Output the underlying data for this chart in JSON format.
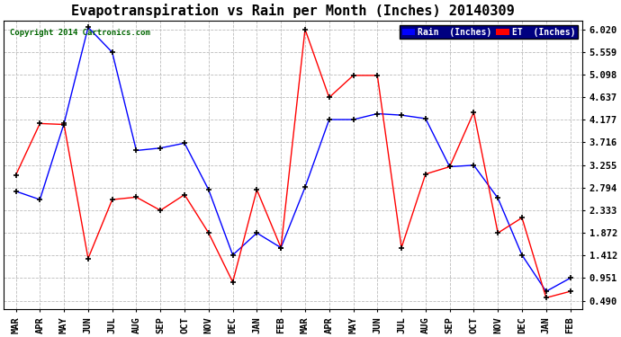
{
  "title": "Evapotranspiration vs Rain per Month (Inches) 20140309",
  "copyright": "Copyright 2014 Cartronics.com",
  "x_labels": [
    "MAR",
    "APR",
    "MAY",
    "JUN",
    "JUL",
    "AUG",
    "SEP",
    "OCT",
    "NOV",
    "DEC",
    "JAN",
    "FEB",
    "MAR",
    "APR",
    "MAY",
    "JUN",
    "JUL",
    "AUG",
    "SEP",
    "OCT",
    "NOV",
    "DEC",
    "JAN",
    "FEB"
  ],
  "rain_data": [
    2.72,
    2.55,
    4.1,
    6.06,
    5.55,
    3.55,
    3.6,
    3.7,
    2.75,
    1.42,
    1.87,
    1.57,
    2.8,
    4.18,
    4.18,
    4.3,
    4.27,
    4.2,
    3.22,
    3.25,
    2.58,
    1.42,
    0.68,
    0.95
  ],
  "et_data": [
    3.05,
    4.1,
    4.08,
    1.35,
    2.55,
    2.6,
    2.33,
    2.65,
    1.87,
    0.87,
    2.75,
    1.57,
    6.02,
    4.63,
    5.08,
    5.08,
    1.57,
    3.07,
    3.22,
    4.33,
    1.87,
    2.18,
    0.55,
    0.68
  ],
  "y_ticks": [
    0.49,
    0.951,
    1.412,
    1.872,
    2.333,
    2.794,
    3.255,
    3.716,
    4.177,
    4.637,
    5.098,
    5.559,
    6.02
  ],
  "y_tick_labels": [
    "0.490",
    "0.951",
    "1.412",
    "1.872",
    "2.333",
    "2.794",
    "3.255",
    "3.716",
    "4.177",
    "4.637",
    "5.098",
    "5.559",
    "6.020"
  ],
  "ylim": [
    0.31,
    6.2
  ],
  "rain_color": "#0000FF",
  "et_color": "#FF0000",
  "background_color": "#FFFFFF",
  "grid_color": "#BBBBBB",
  "title_fontsize": 11,
  "tick_fontsize": 7.5,
  "legend_rain_label": "Rain  (Inches)",
  "legend_et_label": "ET  (Inches)"
}
